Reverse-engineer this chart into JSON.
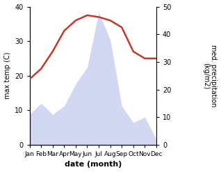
{
  "months": [
    "Jan",
    "Feb",
    "Mar",
    "Apr",
    "May",
    "Jun",
    "Jul",
    "Aug",
    "Sep",
    "Oct",
    "Nov",
    "Dec"
  ],
  "temperature": [
    19,
    22,
    27,
    33,
    36,
    37.5,
    37,
    36,
    34,
    27,
    25,
    25
  ],
  "precipitation": [
    11,
    15,
    11,
    14,
    22,
    28,
    48,
    38,
    14,
    8,
    10,
    2
  ],
  "temp_color": "#c0392b",
  "precip_color": "#b0b8e8",
  "precip_alpha": 0.55,
  "left_ylim": [
    0,
    40
  ],
  "right_ylim": [
    0,
    50
  ],
  "left_yticks": [
    0,
    10,
    20,
    30,
    40
  ],
  "right_yticks": [
    0,
    10,
    20,
    30,
    40,
    50
  ],
  "xlabel": "date (month)",
  "ylabel_left": "max temp (C)",
  "ylabel_right": "med. precipitation\n(kg/m2)",
  "title": ""
}
